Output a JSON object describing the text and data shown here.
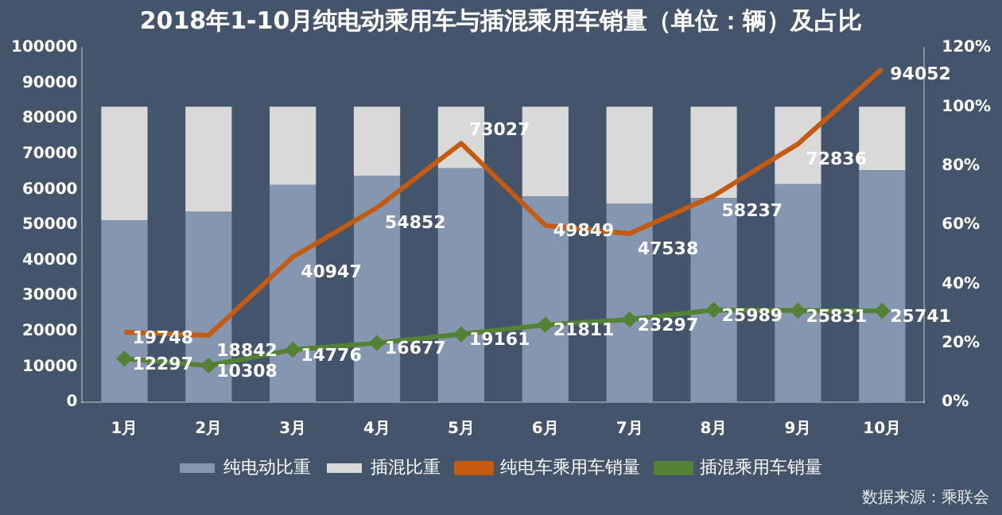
{
  "chart_data": {
    "type": "bar",
    "title": "2018年1-10月纯电动乘用车与插混乘用车销量（单位：辆）及占比",
    "categories": [
      "1月",
      "2月",
      "3月",
      "4月",
      "5月",
      "6月",
      "7月",
      "8月",
      "9月",
      "10月"
    ],
    "stacked": true,
    "series": [
      {
        "name": "纯电动比重",
        "axis": "y2",
        "color": "#8596b0",
        "values": [
          61.6,
          64.6,
          73.5,
          76.7,
          79.2,
          69.6,
          67.1,
          69.1,
          73.8,
          78.5
        ]
      },
      {
        "name": "插混比重",
        "axis": "y2",
        "color": "#d9d9d9",
        "values": [
          38.4,
          35.4,
          26.5,
          23.3,
          20.8,
          30.4,
          32.9,
          30.9,
          26.2,
          21.5
        ]
      },
      {
        "name": "纯电车乘用车销量",
        "type": "line",
        "color": "#c55a11",
        "marker": "none",
        "values": [
          19748,
          18842,
          40947,
          54852,
          73027,
          49849,
          47538,
          58237,
          72836,
          94052
        ],
        "value_labels": [
          "19748",
          "18842",
          "40947",
          "54852",
          "73027",
          "49849",
          "47538",
          "58237",
          "72836",
          "94052"
        ]
      },
      {
        "name": "插混乘用车销量",
        "type": "line",
        "color": "#548235",
        "marker": "diamond",
        "values": [
          12297,
          10308,
          14776,
          16677,
          19161,
          21811,
          23297,
          25989,
          25831,
          25741
        ],
        "value_labels": [
          "12297",
          "10308",
          "14776",
          "16677",
          "19161",
          "21811",
          "23297",
          "25989",
          "25831",
          "25741"
        ]
      }
    ],
    "ylim": [
      0,
      100000
    ],
    "yticks": [
      0,
      10000,
      20000,
      30000,
      40000,
      50000,
      60000,
      70000,
      80000,
      90000,
      100000
    ],
    "y2lim": [
      0,
      120
    ],
    "y2ticks": [
      {
        "value": 0,
        "label": "0%"
      },
      {
        "value": 20,
        "label": "20%"
      },
      {
        "value": 40,
        "label": "40%"
      },
      {
        "value": 60,
        "label": "60%"
      },
      {
        "value": 80,
        "label": "80%"
      },
      {
        "value": 100,
        "label": "100%"
      },
      {
        "value": 120,
        "label": "120%"
      }
    ],
    "grid": false,
    "legend": "bottom",
    "annotations": [
      "数据来源：乘联会"
    ]
  }
}
